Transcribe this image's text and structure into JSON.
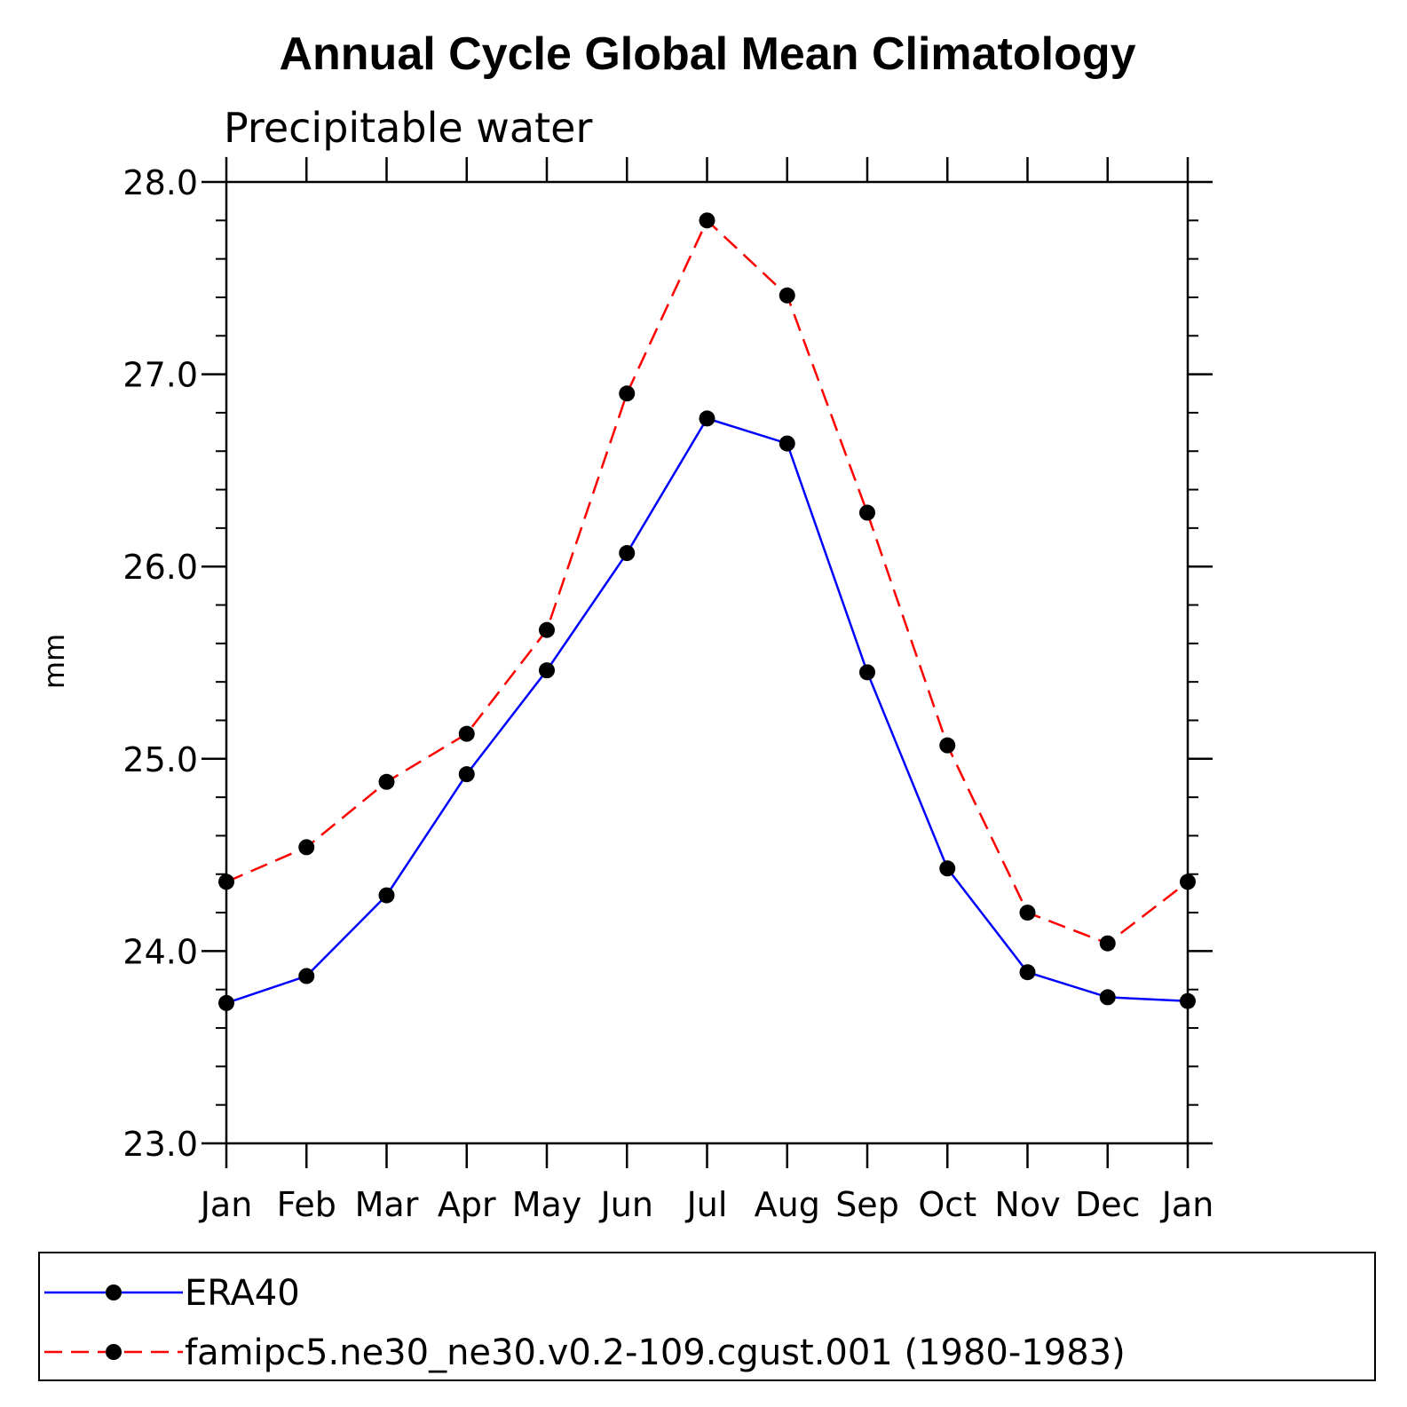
{
  "chart_data": {
    "type": "line",
    "title": "Annual Cycle Global Mean Climatology",
    "subtitle": "Precipitable water",
    "xlabel": "",
    "ylabel": "mm",
    "categories": [
      "Jan",
      "Feb",
      "Mar",
      "Apr",
      "May",
      "Jun",
      "Jul",
      "Aug",
      "Sep",
      "Oct",
      "Nov",
      "Dec",
      "Jan"
    ],
    "ylim": [
      23.0,
      28.0
    ],
    "yticks": [
      "23.0",
      "24.0",
      "25.0",
      "26.0",
      "27.0",
      "28.0"
    ],
    "grid": false,
    "legend_position": "bottom",
    "series": [
      {
        "name": "ERA40",
        "color": "#0000ff",
        "dash": "solid",
        "marker": "filled-circle",
        "values": [
          23.73,
          23.87,
          24.29,
          24.92,
          25.46,
          26.07,
          26.77,
          26.64,
          25.45,
          24.43,
          23.89,
          23.76,
          23.74
        ]
      },
      {
        "name": "famipc5.ne30_ne30.v0.2-109.cgust.001 (1980-1983)",
        "color": "#ff0000",
        "dash": "dashed",
        "marker": "filled-circle",
        "values": [
          24.36,
          24.54,
          24.88,
          25.13,
          25.67,
          26.9,
          27.8,
          27.41,
          26.28,
          25.07,
          24.2,
          24.04,
          24.36
        ]
      }
    ]
  }
}
